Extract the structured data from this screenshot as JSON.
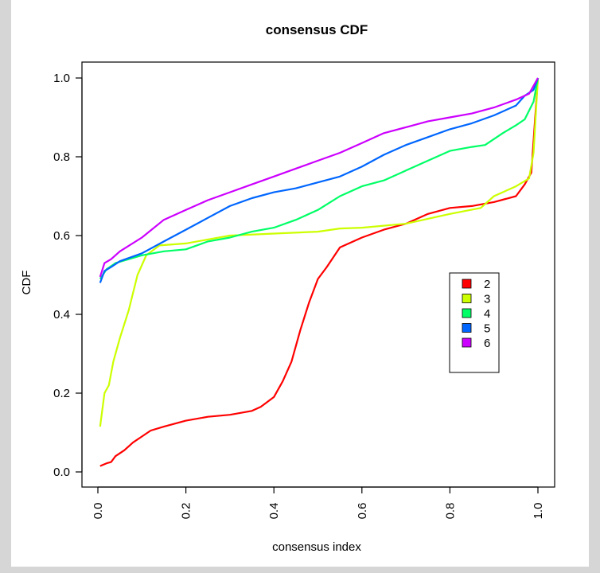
{
  "chart_data": {
    "type": "line",
    "title": "consensus CDF",
    "xlabel": "consensus index",
    "ylabel": "CDF",
    "xlim": [
      0,
      1
    ],
    "ylim": [
      0,
      1
    ],
    "xticks": [
      "0.0",
      "0.2",
      "0.4",
      "0.6",
      "0.8",
      "1.0"
    ],
    "yticks": [
      "0.0",
      "0.2",
      "0.4",
      "0.6",
      "0.8",
      "1.0"
    ],
    "grid": false,
    "legend_position": "right",
    "series": [
      {
        "name": "2",
        "color": "#FF0000",
        "x": [
          0.005,
          0.02,
          0.03,
          0.04,
          0.06,
          0.08,
          0.1,
          0.12,
          0.15,
          0.2,
          0.25,
          0.3,
          0.35,
          0.37,
          0.4,
          0.42,
          0.44,
          0.46,
          0.48,
          0.5,
          0.52,
          0.55,
          0.6,
          0.65,
          0.7,
          0.75,
          0.8,
          0.85,
          0.9,
          0.95,
          0.97,
          0.985,
          1.0
        ],
        "y": [
          0.015,
          0.022,
          0.025,
          0.04,
          0.055,
          0.075,
          0.09,
          0.105,
          0.115,
          0.13,
          0.14,
          0.145,
          0.155,
          0.165,
          0.19,
          0.23,
          0.28,
          0.36,
          0.43,
          0.49,
          0.52,
          0.57,
          0.595,
          0.615,
          0.63,
          0.655,
          0.67,
          0.675,
          0.685,
          0.7,
          0.73,
          0.76,
          1.0
        ]
      },
      {
        "name": "3",
        "color": "#CCFF00",
        "x": [
          0.005,
          0.015,
          0.025,
          0.035,
          0.05,
          0.07,
          0.09,
          0.11,
          0.14,
          0.2,
          0.3,
          0.4,
          0.5,
          0.55,
          0.6,
          0.7,
          0.8,
          0.87,
          0.9,
          0.95,
          0.98,
          0.99,
          1.0
        ],
        "y": [
          0.115,
          0.2,
          0.22,
          0.28,
          0.34,
          0.41,
          0.5,
          0.55,
          0.575,
          0.58,
          0.6,
          0.605,
          0.61,
          0.618,
          0.62,
          0.63,
          0.655,
          0.67,
          0.7,
          0.725,
          0.745,
          0.81,
          1.0
        ]
      },
      {
        "name": "4",
        "color": "#00FF66",
        "x": [
          0.005,
          0.02,
          0.04,
          0.1,
          0.15,
          0.2,
          0.25,
          0.3,
          0.35,
          0.4,
          0.45,
          0.5,
          0.55,
          0.6,
          0.65,
          0.7,
          0.75,
          0.8,
          0.85,
          0.88,
          0.92,
          0.95,
          0.97,
          0.99,
          1.0
        ],
        "y": [
          0.49,
          0.515,
          0.53,
          0.55,
          0.56,
          0.565,
          0.585,
          0.595,
          0.61,
          0.62,
          0.64,
          0.665,
          0.7,
          0.725,
          0.74,
          0.765,
          0.79,
          0.815,
          0.825,
          0.83,
          0.86,
          0.88,
          0.895,
          0.94,
          1.0
        ]
      },
      {
        "name": "5",
        "color": "#0066FF",
        "x": [
          0.005,
          0.015,
          0.03,
          0.05,
          0.1,
          0.15,
          0.2,
          0.25,
          0.3,
          0.35,
          0.4,
          0.45,
          0.5,
          0.55,
          0.6,
          0.65,
          0.7,
          0.75,
          0.8,
          0.85,
          0.9,
          0.95,
          0.97,
          0.99,
          1.0
        ],
        "y": [
          0.48,
          0.51,
          0.52,
          0.535,
          0.555,
          0.585,
          0.615,
          0.645,
          0.675,
          0.695,
          0.71,
          0.72,
          0.735,
          0.75,
          0.775,
          0.805,
          0.83,
          0.85,
          0.87,
          0.885,
          0.905,
          0.93,
          0.955,
          0.97,
          1.0
        ]
      },
      {
        "name": "6",
        "color": "#CC00FF",
        "x": [
          0.005,
          0.015,
          0.03,
          0.05,
          0.1,
          0.15,
          0.2,
          0.25,
          0.3,
          0.35,
          0.4,
          0.45,
          0.5,
          0.55,
          0.6,
          0.65,
          0.7,
          0.75,
          0.8,
          0.85,
          0.9,
          0.95,
          0.98,
          1.0
        ],
        "y": [
          0.495,
          0.53,
          0.54,
          0.56,
          0.595,
          0.64,
          0.665,
          0.69,
          0.71,
          0.73,
          0.75,
          0.77,
          0.79,
          0.81,
          0.835,
          0.86,
          0.875,
          0.89,
          0.9,
          0.91,
          0.925,
          0.945,
          0.96,
          1.0
        ]
      }
    ]
  }
}
